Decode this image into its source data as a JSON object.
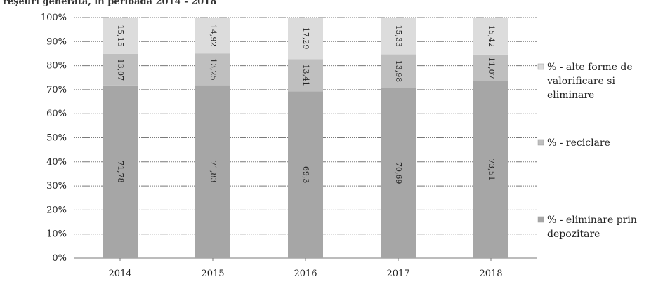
{
  "title_fragment": "reşeuri generata, in perioada 2014 - 2018",
  "chart_data": {
    "type": "bar",
    "stacked": true,
    "categories": [
      "2014",
      "2015",
      "2016",
      "2017",
      "2018"
    ],
    "series": [
      {
        "name": "% - eliminare prin depozitare",
        "values": [
          71.78,
          71.83,
          69.3,
          70.69,
          73.51
        ],
        "labels": [
          "71,78",
          "71,83",
          "69,3",
          "70,69",
          "73,51"
        ],
        "color": "#a6a6a6"
      },
      {
        "name": "% - reciclare",
        "values": [
          13.07,
          13.25,
          13.41,
          13.98,
          11.07
        ],
        "labels": [
          "13,07",
          "13,25",
          "13,41",
          "13,98",
          "11,07"
        ],
        "color": "#bfbfbf"
      },
      {
        "name": "% - alte forme de valorificare si eliminare",
        "values": [
          15.15,
          14.92,
          17.29,
          15.33,
          15.42
        ],
        "labels": [
          "15,15",
          "14,92",
          "17,29",
          "15,33",
          "15,42"
        ],
        "color": "#dcdcdc"
      }
    ],
    "yticks": [
      "0%",
      "10%",
      "20%",
      "30%",
      "40%",
      "50%",
      "60%",
      "70%",
      "80%",
      "90%",
      "100%"
    ],
    "ylim": [
      0,
      100
    ],
    "grid": true,
    "legend": {
      "position": "right",
      "entries": [
        {
          "lines": [
            "% - alte forme de",
            "valorificare si",
            "eliminare"
          ]
        },
        {
          "lines": [
            "% - reciclare"
          ]
        },
        {
          "lines": [
            "% - eliminare prin",
            "depozitare"
          ]
        }
      ]
    }
  }
}
